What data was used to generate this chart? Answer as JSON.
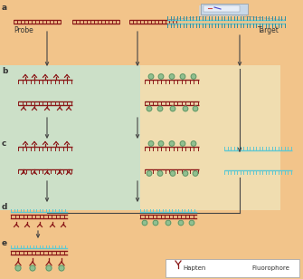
{
  "bg_color": "#f2c48a",
  "green_bg": "#cce0c8",
  "yellow_bg": "#f0ddb0",
  "red_color": "#8b1a1a",
  "blue_color": "#60c8d0",
  "blue_dark": "#3090a0",
  "arrow_color": "#444444",
  "hap_color": "#8b1a1a",
  "flu_color": "#90c090",
  "flu_outline": "#5a8a5a",
  "label_probe": "Probe",
  "label_target": "Target",
  "label_hapten": "Hapten",
  "label_fluorophore": "Fluorophore",
  "fig_width": 3.35,
  "fig_height": 3.08,
  "dpi": 100
}
